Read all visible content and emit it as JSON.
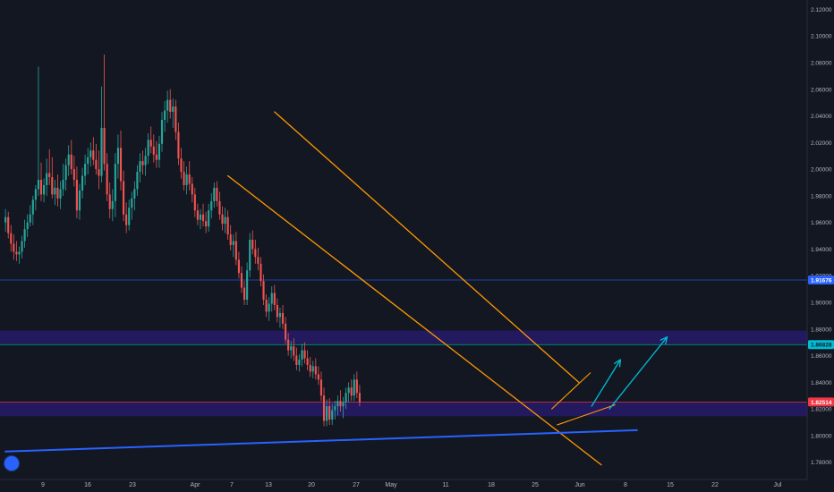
{
  "chart_data": {
    "type": "candlestick",
    "title": "",
    "xlabel": "",
    "ylabel": "",
    "ylim": [
      1.767,
      2.127
    ],
    "grid": false,
    "x_ticks": [
      "9",
      "16",
      "23",
      "Apr",
      "7",
      "13",
      "20",
      "27",
      "May",
      "11",
      "18",
      "25",
      "Jun",
      "8",
      "15",
      "22",
      "Jul"
    ],
    "y_ticks": [
      "1.78000",
      "1.80000",
      "1.82000",
      "1.84000",
      "1.86000",
      "1.88000",
      "1.90000",
      "1.92000",
      "1.94000",
      "1.96000",
      "1.98000",
      "2.00000",
      "2.02000",
      "2.04000",
      "2.06000",
      "2.08000",
      "2.10000",
      "2.12000"
    ],
    "price_markers": [
      {
        "label": "1.91676",
        "value": 1.91676,
        "color": "#2962ff"
      },
      {
        "label": "1.86828",
        "value": 1.86828,
        "color": "#00bcd4"
      },
      {
        "label": "1.82514",
        "value": 1.82514,
        "color": "#f23645"
      }
    ],
    "zones": [
      {
        "low": 1.8693,
        "high": 1.8788,
        "color": "#311b92"
      },
      {
        "low": 1.8145,
        "high": 1.8252,
        "color": "#311b92"
      }
    ],
    "colors": {
      "up": "#26a69a",
      "down": "#ef5350",
      "channel": "#ff9800",
      "support": "#2962ff",
      "arrow": "#00bcd4"
    },
    "channel": {
      "upper": [
        [
          98,
          2.043
        ],
        [
          208.8,
          1.84
        ]
      ],
      "lower": [
        [
          81,
          1.995
        ],
        [
          217,
          1.778
        ]
      ]
    },
    "flag": {
      "upper": [
        [
          199,
          1.82
        ],
        [
          213,
          1.847
        ]
      ],
      "lower": [
        [
          201,
          1.808
        ],
        [
          222,
          1.823
        ]
      ]
    },
    "support_line": [
      [
        0,
        1.788
      ],
      [
        230,
        1.804
      ]
    ],
    "arrows": [
      [
        [
          213.5,
          1.822
        ],
        [
          224,
          1.857
        ]
      ],
      [
        [
          220,
          1.82
        ],
        [
          241,
          1.874
        ]
      ]
    ],
    "ohlc": [
      [
        0,
        1.96,
        1.97,
        1.953,
        1.964
      ],
      [
        1,
        1.964,
        1.968,
        1.948,
        1.952
      ],
      [
        2,
        1.952,
        1.958,
        1.938,
        1.944
      ],
      [
        3,
        1.944,
        1.951,
        1.932,
        1.938
      ],
      [
        4,
        1.938,
        1.946,
        1.931,
        1.936
      ],
      [
        5,
        1.936,
        1.942,
        1.929,
        1.938
      ],
      [
        6,
        1.938,
        1.95,
        1.933,
        1.946
      ],
      [
        7,
        1.946,
        1.962,
        1.941,
        1.955
      ],
      [
        8,
        1.955,
        1.966,
        1.949,
        1.96
      ],
      [
        9,
        1.96,
        1.973,
        1.957,
        1.966
      ],
      [
        10,
        1.966,
        1.98,
        1.958,
        1.977
      ],
      [
        11,
        1.977,
        1.988,
        1.969,
        1.985
      ],
      [
        12,
        1.985,
        2.077,
        1.98,
        1.992
      ],
      [
        13,
        1.992,
        2.005,
        1.976,
        1.981
      ],
      [
        14,
        1.981,
        1.993,
        1.975,
        1.988
      ],
      [
        15,
        1.988,
        2.008,
        1.98,
        1.997
      ],
      [
        16,
        1.997,
        2.015,
        1.988,
        1.994
      ],
      [
        17,
        1.994,
        2.009,
        1.978,
        1.981
      ],
      [
        18,
        1.981,
        1.992,
        1.973,
        1.986
      ],
      [
        19,
        1.986,
        1.996,
        1.972,
        1.978
      ],
      [
        20,
        1.978,
        1.991,
        1.97,
        1.985
      ],
      [
        21,
        1.985,
        2.004,
        1.98,
        1.992
      ],
      [
        22,
        1.992,
        2.008,
        1.984,
        2.003
      ],
      [
        23,
        2.003,
        2.018,
        1.995,
        2.011
      ],
      [
        24,
        2.011,
        2.022,
        1.996,
        2.0
      ],
      [
        25,
        2.0,
        2.01,
        1.987,
        1.992
      ],
      [
        26,
        1.992,
        2.002,
        1.963,
        1.969
      ],
      [
        27,
        1.969,
        1.989,
        1.962,
        1.984
      ],
      [
        28,
        1.984,
        2.001,
        1.978,
        1.995
      ],
      [
        29,
        1.995,
        2.011,
        1.988,
        2.004
      ],
      [
        30,
        2.004,
        2.016,
        1.996,
        2.009
      ],
      [
        31,
        2.009,
        2.02,
        2.002,
        2.014
      ],
      [
        32,
        2.014,
        2.024,
        2.003,
        2.007
      ],
      [
        33,
        2.007,
        2.019,
        1.996,
        2.0
      ],
      [
        34,
        2.0,
        2.014,
        1.985,
        1.995
      ],
      [
        35,
        1.995,
        2.062,
        1.99,
        2.031
      ],
      [
        36,
        2.031,
        2.086,
        1.999,
        2.004
      ],
      [
        37,
        2.004,
        2.012,
        1.976,
        1.981
      ],
      [
        38,
        1.981,
        1.99,
        1.963,
        1.97
      ],
      [
        39,
        1.97,
        1.985,
        1.961,
        1.976
      ],
      [
        40,
        1.976,
        2.012,
        1.964,
        2.004
      ],
      [
        41,
        2.004,
        2.026,
        1.993,
        2.016
      ],
      [
        42,
        2.016,
        2.029,
        1.984,
        1.991
      ],
      [
        43,
        1.991,
        1.999,
        1.961,
        1.966
      ],
      [
        44,
        1.966,
        1.975,
        1.952,
        1.958
      ],
      [
        45,
        1.958,
        1.977,
        1.954,
        1.971
      ],
      [
        46,
        1.971,
        1.983,
        1.962,
        1.978
      ],
      [
        47,
        1.978,
        1.991,
        1.969,
        1.985
      ],
      [
        48,
        1.985,
        2.003,
        1.98,
        1.998
      ],
      [
        49,
        1.998,
        2.012,
        1.99,
        2.006
      ],
      [
        50,
        2.006,
        2.014,
        1.996,
        2.003
      ],
      [
        51,
        2.003,
        2.016,
        1.995,
        2.01
      ],
      [
        52,
        2.01,
        2.027,
        2.004,
        2.022
      ],
      [
        53,
        2.022,
        2.032,
        2.012,
        2.017
      ],
      [
        54,
        2.017,
        2.026,
        2.005,
        2.011
      ],
      [
        55,
        2.011,
        2.021,
        2.001,
        2.007
      ],
      [
        56,
        2.007,
        2.025,
        2.001,
        2.019
      ],
      [
        57,
        2.019,
        2.043,
        2.013,
        2.037
      ],
      [
        58,
        2.037,
        2.051,
        2.028,
        2.044
      ],
      [
        59,
        2.044,
        2.059,
        2.035,
        2.052
      ],
      [
        60,
        2.052,
        2.06,
        2.038,
        2.043
      ],
      [
        61,
        2.043,
        2.053,
        2.031,
        2.047
      ],
      [
        62,
        2.047,
        2.052,
        2.022,
        2.028
      ],
      [
        63,
        2.028,
        2.035,
        2.003,
        2.008
      ],
      [
        64,
        2.008,
        2.016,
        1.993,
        1.998
      ],
      [
        65,
        1.998,
        2.006,
        1.984,
        1.988
      ],
      [
        66,
        1.988,
        2.002,
        1.981,
        1.996
      ],
      [
        67,
        1.996,
        2.006,
        1.984,
        1.989
      ],
      [
        68,
        1.989,
        1.994,
        1.975,
        1.981
      ],
      [
        69,
        1.981,
        1.986,
        1.964,
        1.969
      ],
      [
        70,
        1.969,
        1.974,
        1.958,
        1.962
      ],
      [
        71,
        1.962,
        1.97,
        1.955,
        1.966
      ],
      [
        72,
        1.966,
        1.974,
        1.957,
        1.961
      ],
      [
        73,
        1.961,
        1.968,
        1.952,
        1.957
      ],
      [
        74,
        1.957,
        1.974,
        1.953,
        1.969
      ],
      [
        75,
        1.969,
        1.982,
        1.963,
        1.976
      ],
      [
        76,
        1.976,
        1.99,
        1.971,
        1.986
      ],
      [
        77,
        1.986,
        1.991,
        1.972,
        1.976
      ],
      [
        78,
        1.976,
        1.983,
        1.962,
        1.966
      ],
      [
        79,
        1.966,
        1.972,
        1.954,
        1.959
      ],
      [
        80,
        1.959,
        1.971,
        1.952,
        1.964
      ],
      [
        81,
        1.964,
        1.969,
        1.947,
        1.951
      ],
      [
        82,
        1.951,
        1.958,
        1.939,
        1.943
      ],
      [
        83,
        1.943,
        1.951,
        1.934,
        1.946
      ],
      [
        84,
        1.946,
        1.953,
        1.928,
        1.932
      ],
      [
        85,
        1.932,
        1.938,
        1.918,
        1.922
      ],
      [
        86,
        1.922,
        1.927,
        1.907,
        1.911
      ],
      [
        87,
        1.911,
        1.916,
        1.898,
        1.902
      ],
      [
        88,
        1.902,
        1.93,
        1.898,
        1.924
      ],
      [
        89,
        1.924,
        1.952,
        1.919,
        1.947
      ],
      [
        90,
        1.947,
        1.954,
        1.936,
        1.94
      ],
      [
        91,
        1.94,
        1.947,
        1.929,
        1.934
      ],
      [
        92,
        1.934,
        1.941,
        1.924,
        1.929
      ],
      [
        93,
        1.929,
        1.934,
        1.912,
        1.916
      ],
      [
        94,
        1.916,
        1.921,
        1.898,
        1.902
      ],
      [
        95,
        1.902,
        1.906,
        1.889,
        1.893
      ],
      [
        96,
        1.893,
        1.904,
        1.886,
        1.899
      ],
      [
        97,
        1.899,
        1.912,
        1.893,
        1.907
      ],
      [
        98,
        1.907,
        1.913,
        1.894,
        1.898
      ],
      [
        99,
        1.898,
        1.903,
        1.885,
        1.889
      ],
      [
        100,
        1.889,
        1.896,
        1.881,
        1.892
      ],
      [
        101,
        1.892,
        1.898,
        1.88,
        1.884
      ],
      [
        102,
        1.884,
        1.889,
        1.869,
        1.872
      ],
      [
        103,
        1.872,
        1.877,
        1.86,
        1.864
      ],
      [
        104,
        1.864,
        1.871,
        1.858,
        1.867
      ],
      [
        105,
        1.867,
        1.873,
        1.856,
        1.86
      ],
      [
        106,
        1.86,
        1.866,
        1.849,
        1.853
      ],
      [
        107,
        1.853,
        1.861,
        1.848,
        1.857
      ],
      [
        108,
        1.857,
        1.869,
        1.852,
        1.864
      ],
      [
        109,
        1.864,
        1.87,
        1.854,
        1.858
      ],
      [
        110,
        1.858,
        1.864,
        1.849,
        1.853
      ],
      [
        111,
        1.853,
        1.859,
        1.844,
        1.848
      ],
      [
        112,
        1.848,
        1.856,
        1.843,
        1.852
      ],
      [
        113,
        1.852,
        1.858,
        1.842,
        1.846
      ],
      [
        114,
        1.846,
        1.852,
        1.838,
        1.842
      ],
      [
        115,
        1.842,
        1.848,
        1.826,
        1.83
      ],
      [
        116,
        1.83,
        1.836,
        1.807,
        1.811
      ],
      [
        117,
        1.811,
        1.827,
        1.807,
        1.822
      ],
      [
        118,
        1.822,
        1.828,
        1.808,
        1.812
      ],
      [
        119,
        1.812,
        1.824,
        1.808,
        1.819
      ],
      [
        120,
        1.819,
        1.826,
        1.812,
        1.822
      ],
      [
        121,
        1.822,
        1.83,
        1.815,
        1.826
      ],
      [
        122,
        1.826,
        1.834,
        1.818,
        1.822
      ],
      [
        123,
        1.822,
        1.829,
        1.813,
        1.825
      ],
      [
        124,
        1.825,
        1.836,
        1.82,
        1.832
      ],
      [
        125,
        1.832,
        1.84,
        1.825,
        1.836
      ],
      [
        126,
        1.836,
        1.842,
        1.826,
        1.83
      ],
      [
        127,
        1.83,
        1.846,
        1.826,
        1.842
      ],
      [
        128,
        1.842,
        1.848,
        1.828,
        1.832
      ],
      [
        129,
        1.832,
        1.838,
        1.822,
        1.825
      ]
    ],
    "ohlc_fields": [
      "index",
      "open",
      "high",
      "low",
      "close"
    ],
    "x_range": [
      -2,
      292
    ]
  }
}
